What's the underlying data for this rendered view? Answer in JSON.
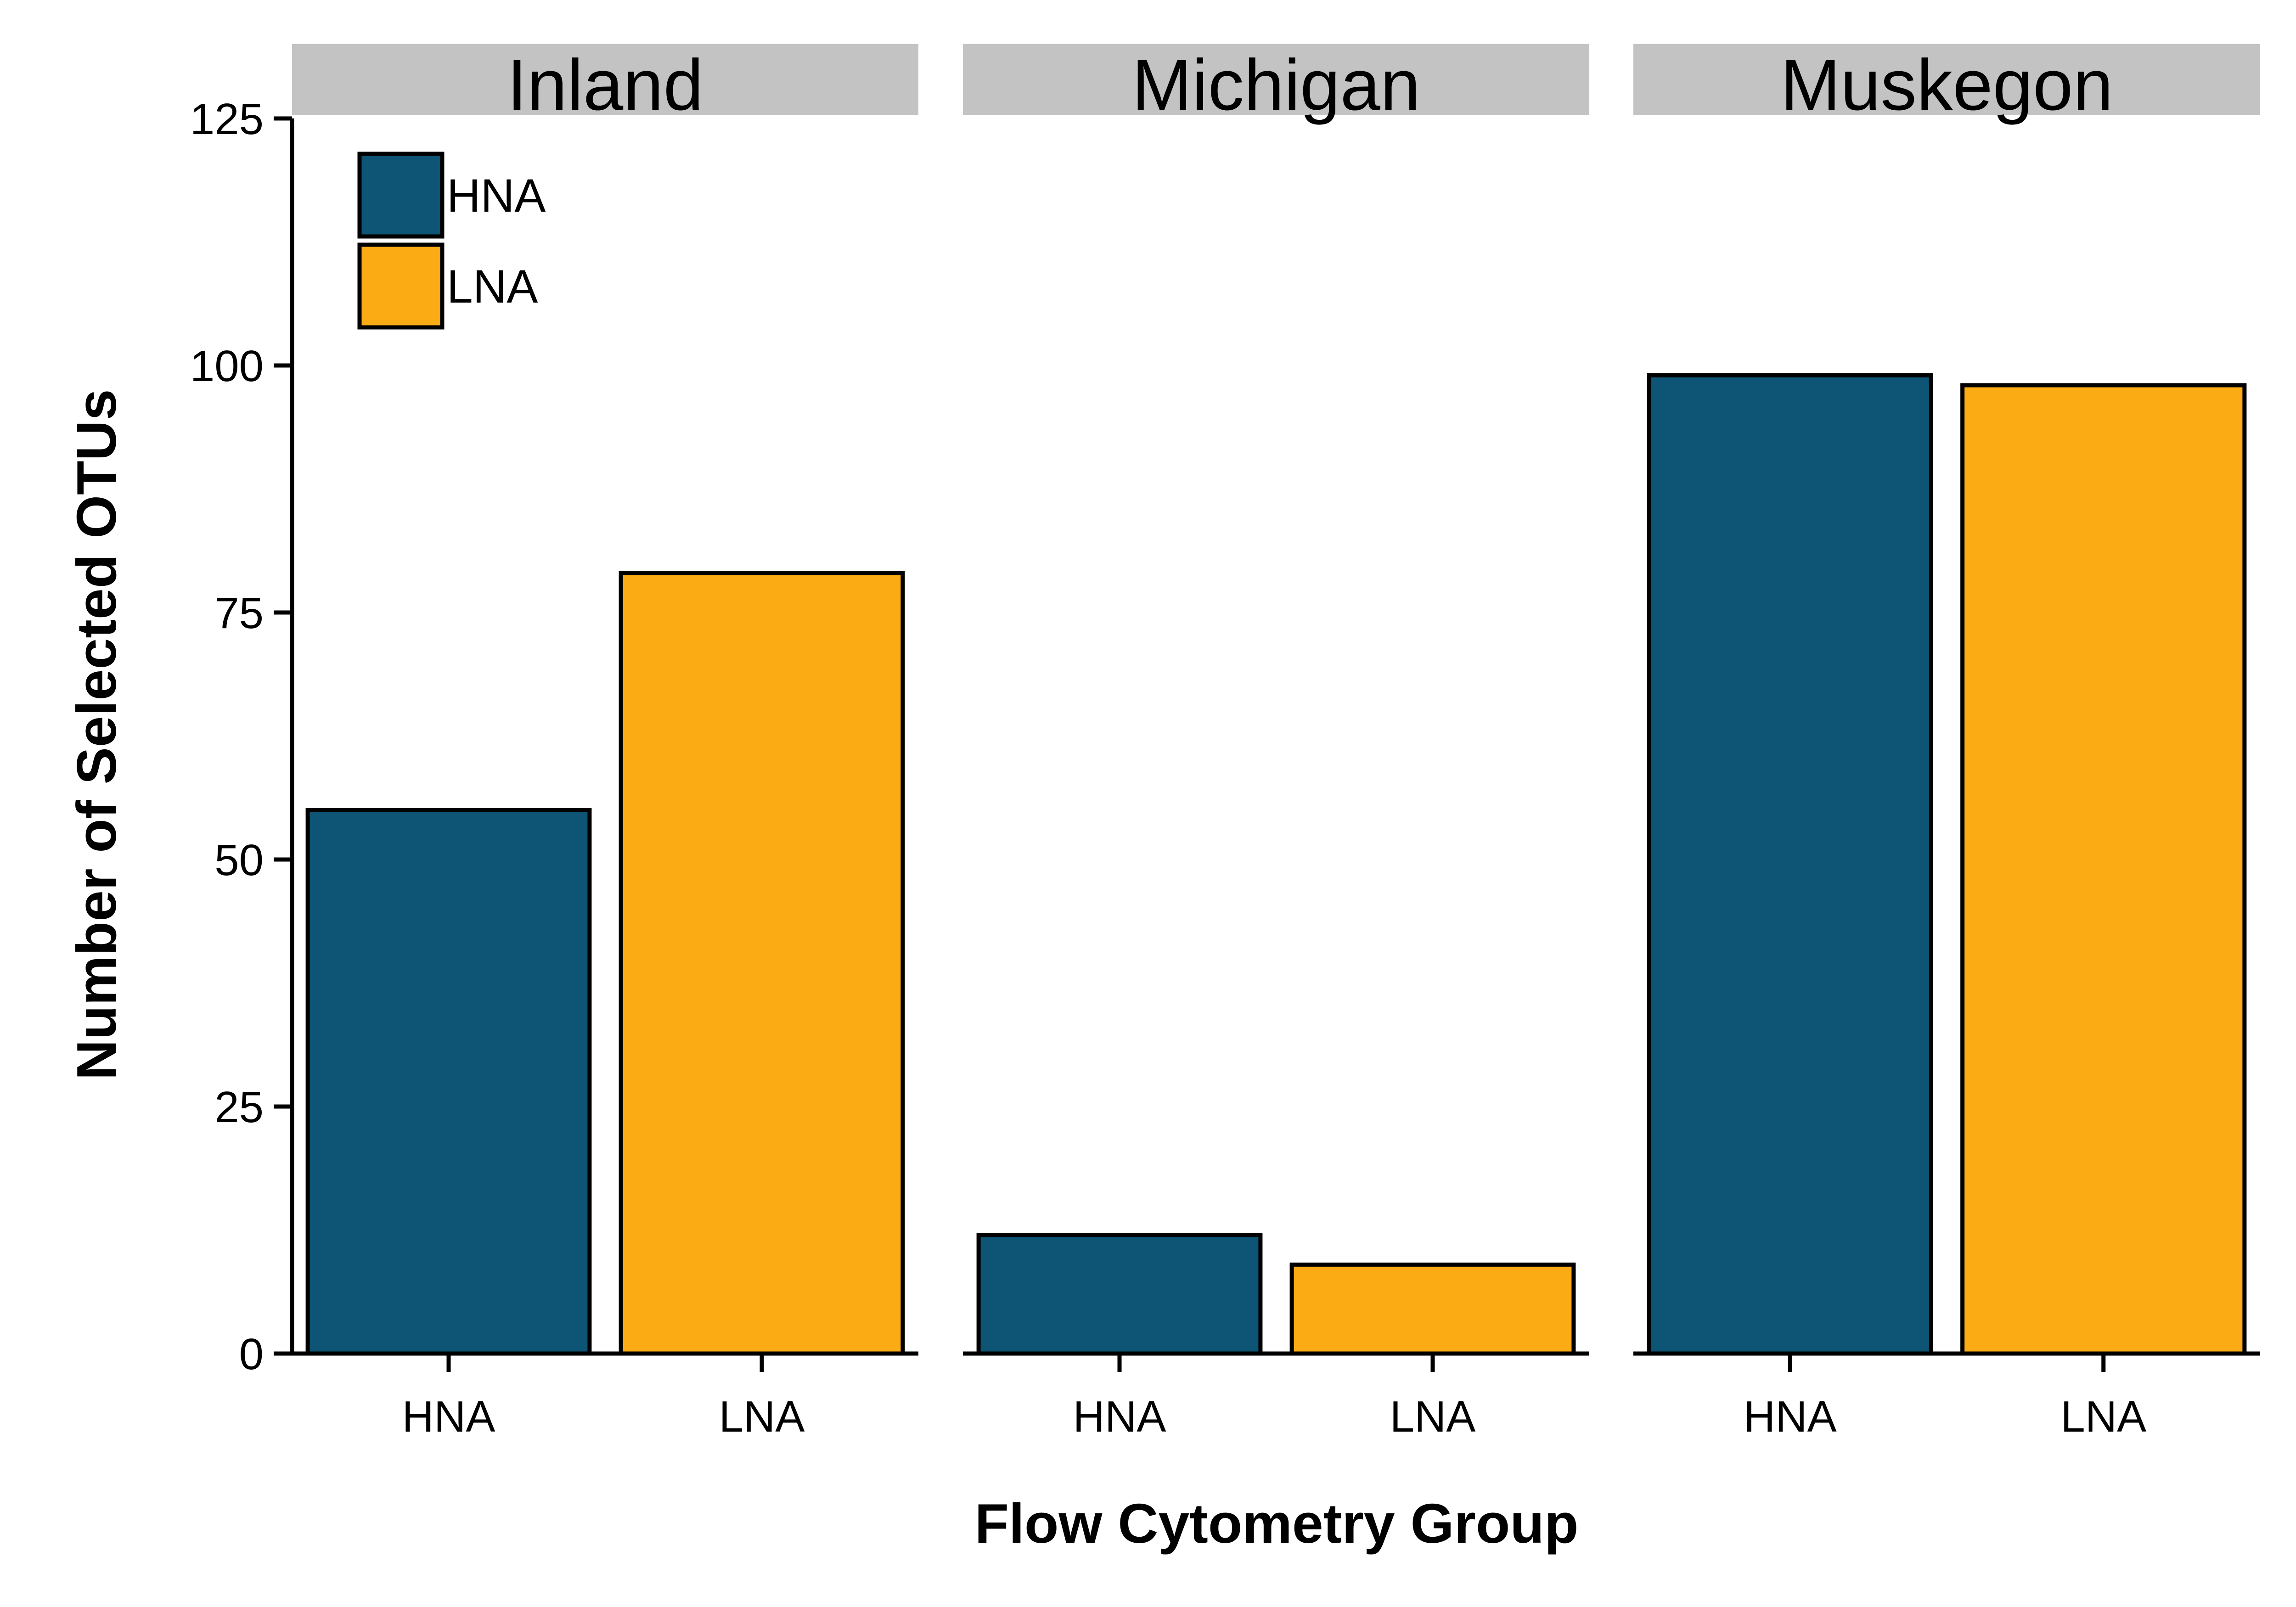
{
  "chart_data": {
    "type": "bar",
    "facet_by": "panel",
    "panels": [
      {
        "name": "Inland",
        "categories": [
          "HNA",
          "LNA"
        ],
        "values": [
          55,
          79
        ]
      },
      {
        "name": "Michigan",
        "categories": [
          "HNA",
          "LNA"
        ],
        "values": [
          12,
          9
        ]
      },
      {
        "name": "Muskegon",
        "categories": [
          "HNA",
          "LNA"
        ],
        "values": [
          99,
          98
        ]
      }
    ],
    "xlabel": "Flow Cytometry Group",
    "ylabel": "Number of Selected OTUs",
    "ylim": [
      0,
      125
    ],
    "yticks": [
      "0",
      "25",
      "50",
      "75",
      "100",
      "125"
    ],
    "legend": {
      "placement": "top-left",
      "items": [
        {
          "label": "HNA",
          "color": "#0e5474"
        },
        {
          "label": "LNA",
          "color": "#fbab13"
        }
      ]
    },
    "colors": {
      "HNA": "#0e5474",
      "LNA": "#fbab13",
      "strip": "#c3c3c3"
    },
    "grid": false
  }
}
